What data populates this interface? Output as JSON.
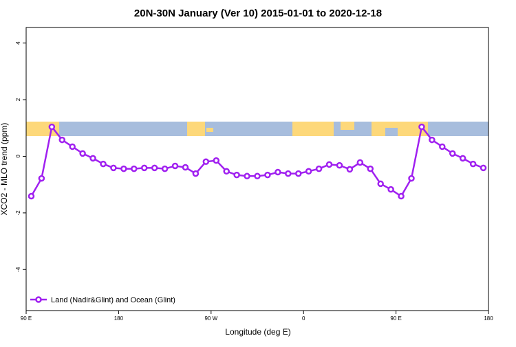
{
  "chart_data": {
    "type": "line",
    "title": "20N-30N January (Ver 10)   2015-01-01 to 2020-12-18",
    "xlabel": "Longitude (deg E)",
    "ylabel": "XCO2 - MLO trend (ppm)",
    "xlim": [
      90,
      540
    ],
    "ylim": [
      -5.45,
      4.55
    ],
    "xticks": [
      {
        "value": 90,
        "label": "90 E"
      },
      180,
      {
        "value": 270,
        "label": "90 W"
      },
      {
        "value": 360,
        "label": "0"
      },
      {
        "value": 450,
        "label": "90 E"
      },
      {
        "value": 540,
        "label": "180"
      }
    ],
    "yticks": [
      -4,
      -2,
      0,
      2,
      4
    ],
    "x": [
      95,
      105,
      115,
      125,
      135,
      145,
      155,
      165,
      175,
      185,
      195,
      205,
      215,
      225,
      235,
      245,
      255,
      265,
      275,
      285,
      295,
      305,
      315,
      325,
      335,
      345,
      355,
      365,
      375,
      385,
      395,
      405,
      415,
      425,
      435,
      445,
      455,
      465,
      475,
      485,
      495,
      505,
      515,
      525,
      535
    ],
    "series": [
      {
        "name": "Land (Nadir&Glint) and Ocean (Glint)",
        "color": "#a020f0",
        "values": [
          -1.41,
          -0.78,
          1.04,
          0.58,
          0.34,
          0.1,
          -0.07,
          -0.27,
          -0.41,
          -0.44,
          -0.44,
          -0.41,
          -0.41,
          -0.44,
          -0.34,
          -0.39,
          -0.61,
          -0.19,
          -0.15,
          -0.53,
          -0.66,
          -0.7,
          -0.7,
          -0.66,
          -0.56,
          -0.61,
          -0.61,
          -0.53,
          -0.44,
          -0.29,
          -0.32,
          -0.46,
          -0.22,
          -0.44,
          -0.97,
          -1.17,
          -1.41,
          -0.78,
          1.04,
          0.58,
          0.34,
          0.1,
          -0.07,
          -0.27,
          -0.41
        ]
      }
    ],
    "legend": "bottom-left"
  }
}
